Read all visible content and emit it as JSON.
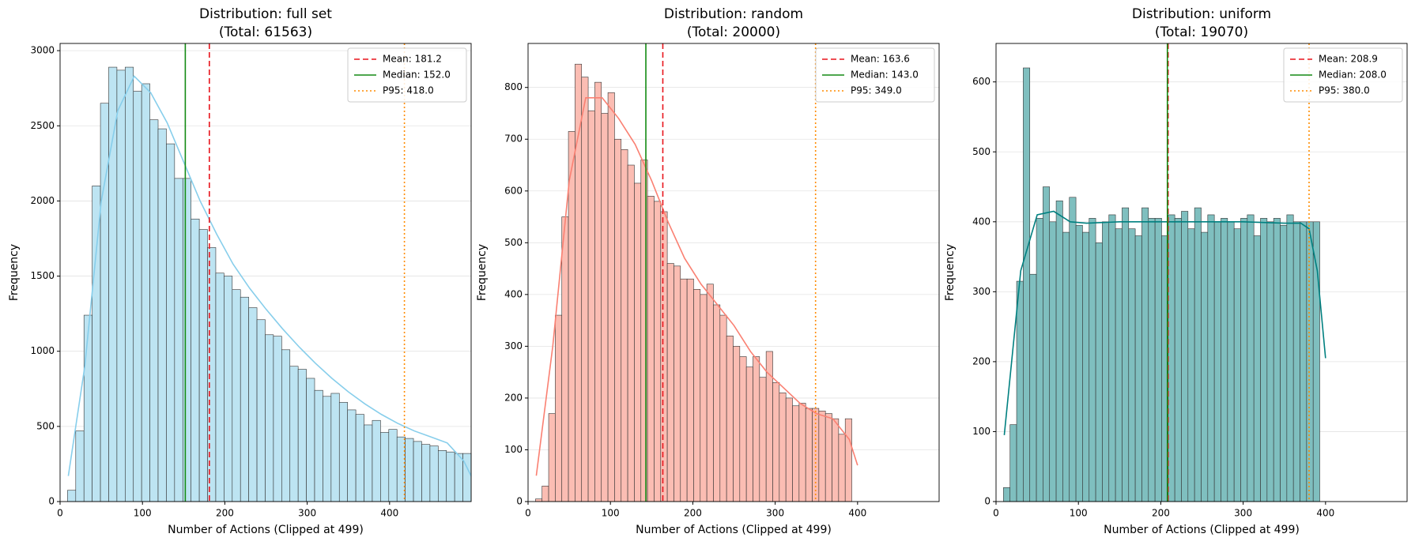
{
  "chart_data": [
    {
      "type": "histogram",
      "title": "Distribution: full set",
      "subtitle": "(Total: 61563)",
      "xlabel": "Number of Actions (Clipped at 499)",
      "ylabel": "Frequency",
      "bins": [
        9,
        19,
        29,
        39,
        49,
        59,
        69,
        79,
        89,
        99,
        109,
        119,
        129,
        139,
        149,
        159,
        169,
        179,
        189,
        199,
        209,
        219,
        229,
        239,
        249,
        259,
        269,
        279,
        289,
        299,
        309,
        319,
        329,
        339,
        349,
        359,
        369,
        379,
        389,
        399,
        409,
        419,
        429,
        439,
        449,
        459,
        469,
        479,
        489,
        499
      ],
      "values": [
        75,
        470,
        1240,
        2100,
        2650,
        2890,
        2870,
        2890,
        2730,
        2780,
        2540,
        2480,
        2380,
        2150,
        2150,
        1880,
        1810,
        1690,
        1520,
        1500,
        1410,
        1360,
        1290,
        1210,
        1110,
        1100,
        1010,
        900,
        880,
        820,
        740,
        700,
        720,
        660,
        610,
        580,
        510,
        540,
        460,
        480,
        430,
        420,
        400,
        380,
        370,
        340,
        330,
        320,
        320
      ],
      "color": "#bde4f2",
      "kde": {
        "color": "#87ceeb",
        "x": [
          10,
          30,
          50,
          70,
          90,
          110,
          130,
          150,
          170,
          190,
          210,
          230,
          250,
          270,
          290,
          310,
          330,
          350,
          370,
          390,
          410,
          430,
          450,
          470,
          490,
          499
        ],
        "values": [
          170,
          900,
          2000,
          2600,
          2830,
          2720,
          2520,
          2260,
          2000,
          1780,
          1580,
          1420,
          1280,
          1150,
          1030,
          920,
          820,
          730,
          650,
          580,
          520,
          470,
          430,
          390,
          270,
          170
        ]
      },
      "ref_lines": [
        {
          "name": "Mean: 181.2",
          "value": 181.2,
          "color": "#e8141c",
          "style": "dashed"
        },
        {
          "name": "Median: 152.0",
          "value": 152.0,
          "color": "#138a13",
          "style": "solid"
        },
        {
          "name": "P95: 418.0",
          "value": 418.0,
          "color": "#ff8c00",
          "style": "dotted"
        }
      ],
      "xlim": [
        0,
        499
      ],
      "xticks": [
        0,
        100,
        200,
        300,
        400
      ],
      "ylim": [
        0,
        3048
      ],
      "yticks": [
        0,
        500,
        1000,
        1500,
        2000,
        2500,
        3000
      ],
      "grid": true,
      "legend": "upper right"
    },
    {
      "type": "histogram",
      "title": "Distribution: random",
      "subtitle": "(Total: 20000)",
      "xlabel": "Number of Actions (Clipped at 499)",
      "ylabel": "Frequency",
      "bins": [
        9,
        17,
        25,
        33,
        41,
        49,
        57,
        65,
        73,
        81,
        89,
        97,
        105,
        113,
        121,
        129,
        137,
        145,
        153,
        161,
        169,
        177,
        185,
        193,
        201,
        209,
        217,
        225,
        233,
        241,
        249,
        257,
        265,
        273,
        281,
        289,
        297,
        305,
        313,
        321,
        329,
        337,
        345,
        353,
        361,
        369,
        377,
        385,
        393
      ],
      "values": [
        5,
        30,
        170,
        360,
        550,
        715,
        845,
        820,
        755,
        810,
        750,
        790,
        700,
        680,
        650,
        615,
        660,
        590,
        580,
        560,
        460,
        455,
        430,
        430,
        410,
        400,
        420,
        380,
        360,
        320,
        300,
        280,
        260,
        280,
        240,
        290,
        230,
        210,
        200,
        185,
        190,
        180,
        180,
        175,
        170,
        160,
        130,
        160
      ],
      "color": "#fbbdb3",
      "kde": {
        "color": "#fa8072",
        "x": [
          10,
          30,
          50,
          70,
          90,
          110,
          130,
          150,
          170,
          190,
          210,
          230,
          250,
          270,
          290,
          310,
          330,
          350,
          370,
          390,
          400
        ],
        "values": [
          50,
          300,
          620,
          780,
          780,
          740,
          690,
          620,
          540,
          470,
          420,
          380,
          340,
          290,
          250,
          220,
          190,
          170,
          160,
          120,
          70
        ]
      },
      "ref_lines": [
        {
          "name": "Mean: 163.6",
          "value": 163.6,
          "color": "#e8141c",
          "style": "dashed"
        },
        {
          "name": "Median: 143.0",
          "value": 143.0,
          "color": "#138a13",
          "style": "solid"
        },
        {
          "name": "P95: 349.0",
          "value": 349.0,
          "color": "#ff8c00",
          "style": "dotted"
        }
      ],
      "xlim": [
        0,
        499
      ],
      "xticks": [
        0,
        100,
        200,
        300,
        400
      ],
      "ylim": [
        0,
        885
      ],
      "yticks": [
        0,
        100,
        200,
        300,
        400,
        500,
        600,
        700,
        800
      ],
      "grid": true,
      "legend": "upper right"
    },
    {
      "type": "histogram",
      "title": "Distribution: uniform",
      "subtitle": "(Total: 19070)",
      "xlabel": "Number of Actions (Clipped at 499)",
      "ylabel": "Frequency",
      "bins": [
        9,
        17,
        25,
        33,
        41,
        49,
        57,
        65,
        73,
        81,
        89,
        97,
        105,
        113,
        121,
        129,
        137,
        145,
        153,
        161,
        169,
        177,
        185,
        193,
        201,
        209,
        217,
        225,
        233,
        241,
        249,
        257,
        265,
        273,
        281,
        289,
        297,
        305,
        313,
        321,
        329,
        337,
        345,
        353,
        361,
        369,
        377,
        385,
        393
      ],
      "values": [
        20,
        110,
        315,
        620,
        325,
        405,
        450,
        400,
        430,
        385,
        435,
        395,
        385,
        405,
        370,
        400,
        410,
        390,
        420,
        390,
        380,
        420,
        405,
        405,
        380,
        410,
        405,
        415,
        390,
        420,
        385,
        410,
        400,
        405,
        400,
        390,
        405,
        410,
        380,
        405,
        400,
        405,
        395,
        410,
        400,
        400,
        400,
        400
      ],
      "color": "#7fbfbf",
      "kde": {
        "color": "#008080",
        "x": [
          10,
          30,
          50,
          70,
          90,
          110,
          150,
          200,
          250,
          300,
          350,
          370,
          380,
          390,
          400
        ],
        "values": [
          95,
          330,
          410,
          415,
          400,
          398,
          400,
          400,
          400,
          400,
          398,
          398,
          390,
          330,
          205
        ]
      },
      "ref_lines": [
        {
          "name": "Mean: 208.9",
          "value": 208.9,
          "color": "#e8141c",
          "style": "dashed"
        },
        {
          "name": "Median: 208.0",
          "value": 208.0,
          "color": "#138a13",
          "style": "solid"
        },
        {
          "name": "P95: 380.0",
          "value": 380.0,
          "color": "#ff8c00",
          "style": "dotted"
        }
      ],
      "xlim": [
        0,
        499
      ],
      "xticks": [
        0,
        100,
        200,
        300,
        400
      ],
      "ylim": [
        0,
        655
      ],
      "yticks": [
        0,
        100,
        200,
        300,
        400,
        500,
        600
      ],
      "grid": true,
      "legend": "upper right"
    }
  ]
}
